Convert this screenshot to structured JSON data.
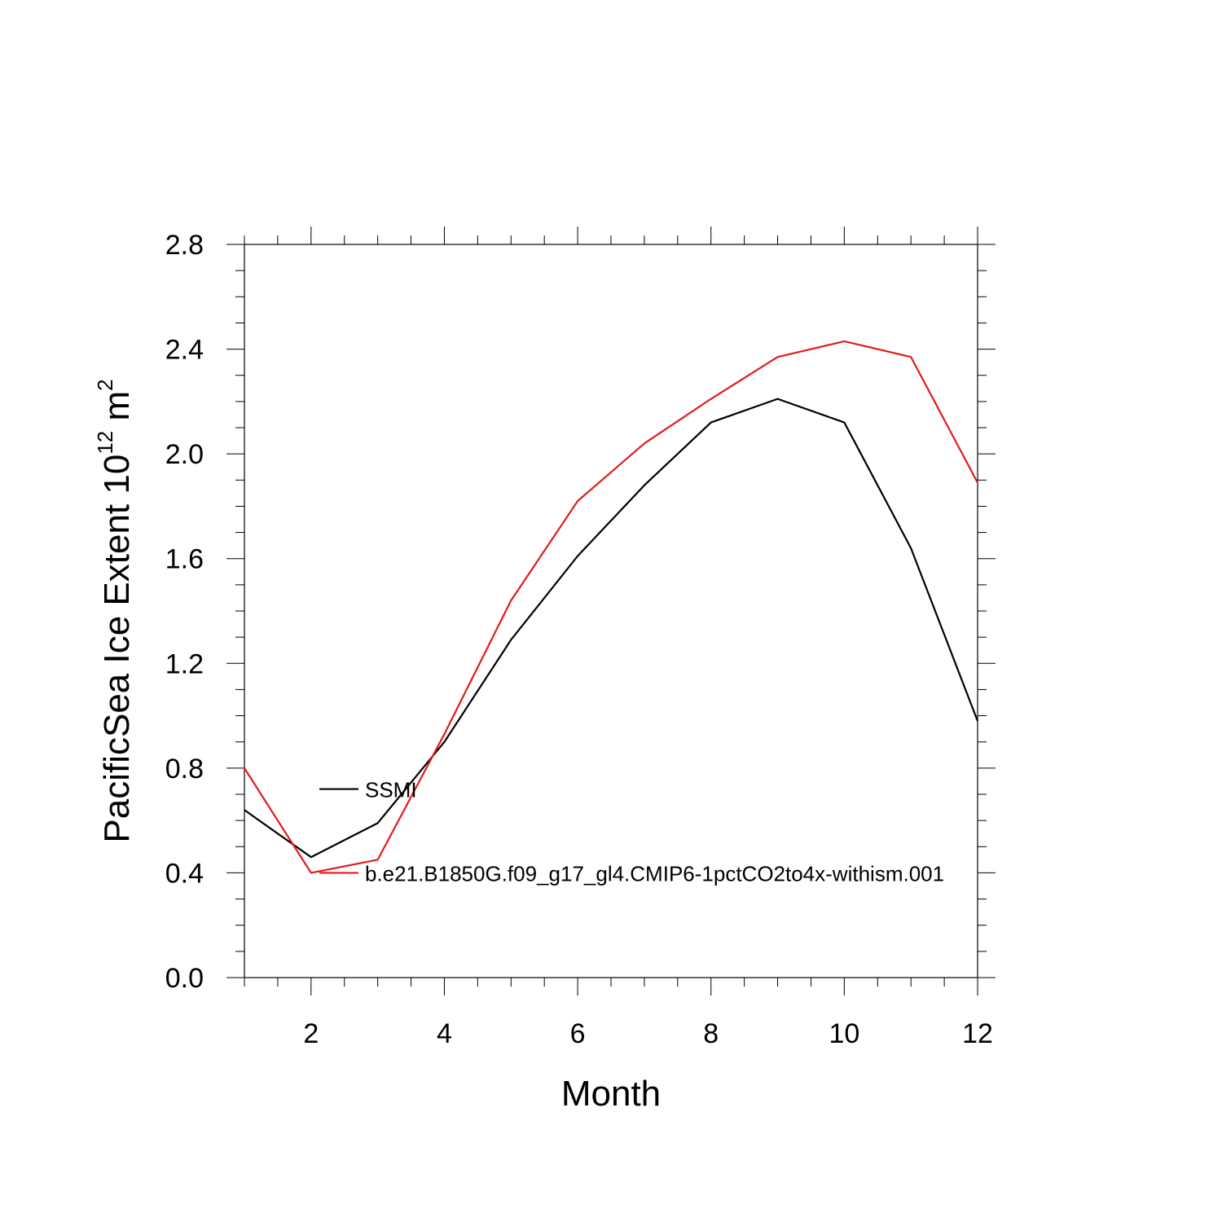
{
  "chart_data": {
    "type": "line",
    "title": "",
    "xlabel": "Month",
    "ylabel": {
      "text": "PacificSea Ice Extent 10",
      "superscript1": "12",
      "unit": " m",
      "superscript2": "2"
    },
    "xlim": [
      1,
      12
    ],
    "ylim": [
      0.0,
      2.8
    ],
    "x_ticks": [
      2,
      4,
      6,
      8,
      10,
      12
    ],
    "x_tick_labels": [
      "2",
      "4",
      "6",
      "8",
      "10",
      "12"
    ],
    "y_ticks": [
      0.0,
      0.4,
      0.8,
      1.2,
      1.6,
      2.0,
      2.4,
      2.8
    ],
    "y_tick_labels": [
      "0.0",
      "0.4",
      "0.8",
      "1.2",
      "1.6",
      "2.0",
      "2.4",
      "2.8"
    ],
    "x": [
      1,
      2,
      3,
      4,
      5,
      6,
      7,
      8,
      9,
      10,
      11,
      12
    ],
    "grid": false,
    "legend_position": "inside-left",
    "series": [
      {
        "name": "SSMI",
        "color": "#000000",
        "values": [
          0.64,
          0.46,
          0.59,
          0.9,
          1.29,
          1.61,
          1.88,
          2.12,
          2.21,
          2.12,
          1.64,
          0.98
        ]
      },
      {
        "name": "b.e21.B1850G.f09_g17_gl4.CMIP6-1pctCO2to4x-withism.001",
        "color": "#e31a1c",
        "values": [
          0.8,
          0.4,
          0.45,
          0.93,
          1.44,
          1.82,
          2.04,
          2.21,
          2.37,
          2.43,
          2.37,
          1.89
        ]
      }
    ]
  }
}
